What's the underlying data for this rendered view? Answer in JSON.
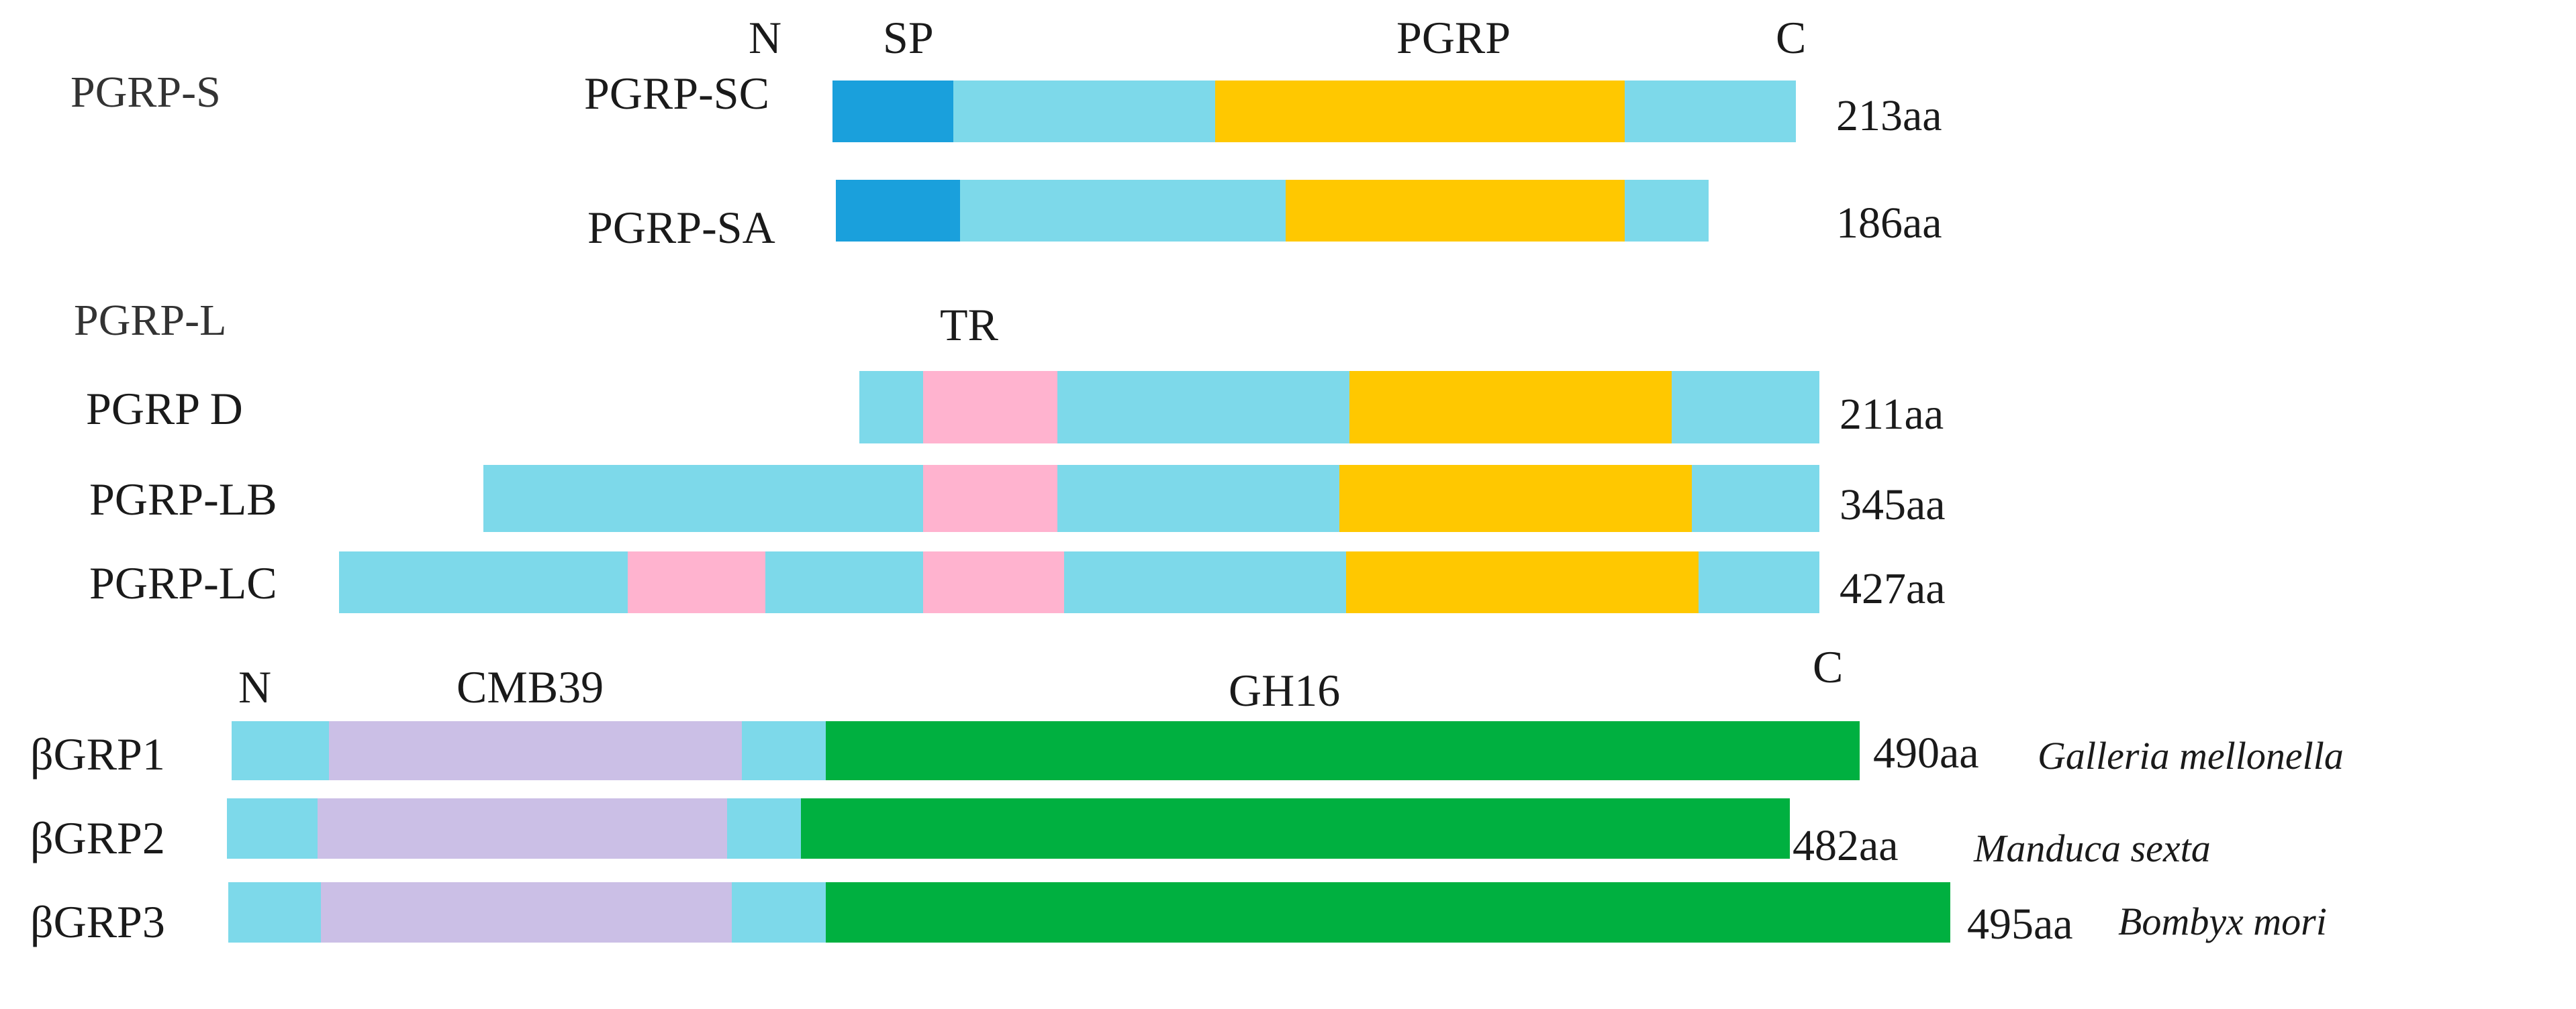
{
  "colors": {
    "linker": "#7dd9ea",
    "signal_peptide": "#1aa0dc",
    "pgrp_domain": "#ffc800",
    "transmembrane": "#ffb3cf",
    "cbm39": "#cbbfe6",
    "gh16": "#00b040"
  },
  "pgrp_header": {
    "n": "N",
    "sp": "SP",
    "pgrp": "PGRP",
    "c": "C"
  },
  "pgrp_s": {
    "group": "PGRP-S",
    "proteins": [
      {
        "name": "PGRP-SC",
        "length": "213aa"
      },
      {
        "name": "PGRP-SA",
        "length": "186aa"
      }
    ]
  },
  "pgrp_l": {
    "group": "PGRP-L",
    "tr": "TR",
    "proteins": [
      {
        "name": "PGRP D",
        "length": "211aa"
      },
      {
        "name": "PGRP-LB",
        "length": "345aa"
      },
      {
        "name": "PGRP-LC",
        "length": "427aa"
      }
    ]
  },
  "bgrp_header": {
    "n": "N",
    "cmb": "CMB39",
    "gh": "GH16",
    "c": "C"
  },
  "bgrp": {
    "proteins": [
      {
        "name": "βGRP1",
        "length": "490aa",
        "species": "Galleria mellonella"
      },
      {
        "name": "βGRP2",
        "length": "482aa",
        "species": "Manduca sexta"
      },
      {
        "name": "βGRP3",
        "length": "495aa",
        "species": "Bombyx mori"
      }
    ]
  }
}
